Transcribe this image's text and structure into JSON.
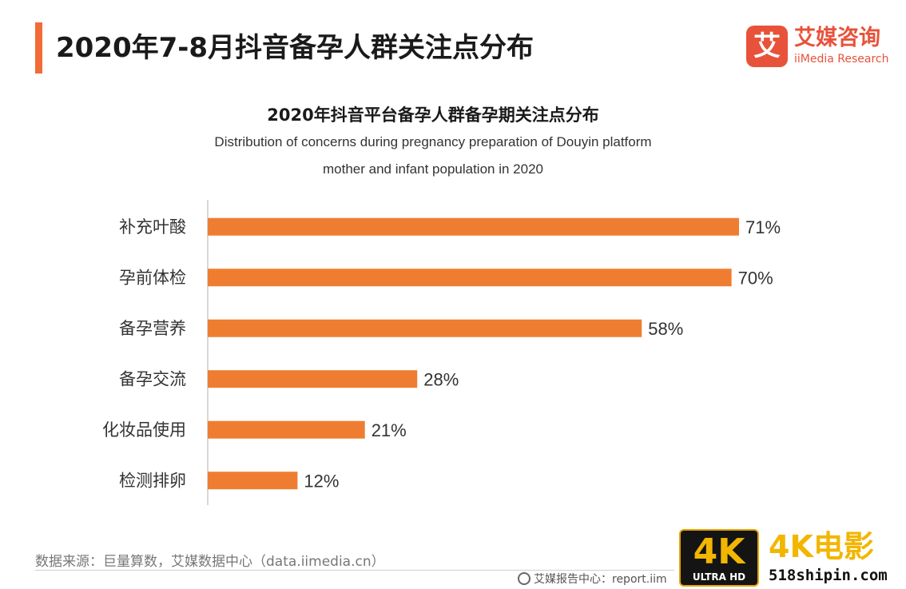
{
  "header": {
    "title": "2020年7-8月抖音备孕人群关注点分布",
    "accent_color": "#f26b38"
  },
  "logo": {
    "mark": "艾",
    "name_cn": "艾媒咨询",
    "name_en": "iiMedia Research",
    "color": "#e8523a"
  },
  "chart_data": {
    "type": "bar",
    "orientation": "horizontal",
    "title": "2020年抖音平台备孕人群备孕期关注点分布",
    "subtitle_lines": [
      "Distribution of concerns during pregnancy preparation of Douyin platform",
      "mother and infant population in 2020"
    ],
    "categories": [
      "补充叶酸",
      "孕前体检",
      "备孕营养",
      "备孕交流",
      "化妆品使用",
      "检测排卵"
    ],
    "values": [
      71,
      70,
      58,
      28,
      21,
      12
    ],
    "labels": [
      "71%",
      "70%",
      "58%",
      "28%",
      "21%",
      "12%"
    ],
    "unit": "%",
    "xlim": [
      0,
      71
    ],
    "bar_color": "#ef7d31",
    "axis_color": "#cccccc",
    "grid": false,
    "legend": "none"
  },
  "footer": {
    "source": "数据来源：巨量算数，艾媒数据中心（data.iimedia.cn）",
    "report_center": "艾媒报告中心：report.iim"
  },
  "watermark": {
    "badge": "4K",
    "badge_sub": "ULTRA HD",
    "name": "4K电影",
    "url": "518shipin.com"
  }
}
